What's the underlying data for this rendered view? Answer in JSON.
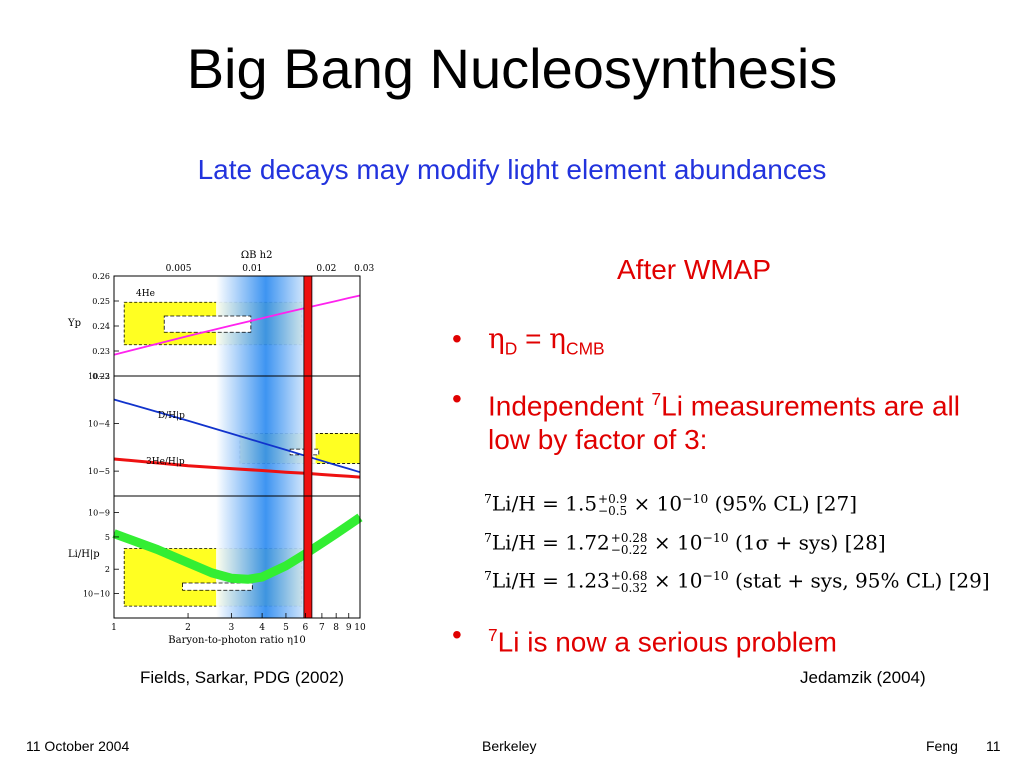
{
  "slide": {
    "title": "Big Bang Nucleosynthesis",
    "subtitle": "Late decays may modify light element abundances",
    "figure_caption": "Fields, Sarkar, PDG (2002)",
    "right_heading": "After WMAP",
    "bullets": {
      "b1_eta": "η",
      "b1_sub_d": "D",
      "b1_eq": " = ",
      "b1_sub_cmb": "CMB",
      "b2_pre": "Independent ",
      "b2_sup": "7",
      "b2_post": "Li measurements are all low by factor of 3:",
      "b3_sup": "7",
      "b3_post": "Li is now a serious problem"
    },
    "equations": [
      {
        "lhs_sup": "7",
        "lhs": "Li/H  =  ",
        "mant": "1.5",
        "up": "+0.9",
        "down": "−0.5",
        "rest": " × 10",
        "exp": "−10",
        "note": "   (95% CL) [27]"
      },
      {
        "lhs_sup": "7",
        "lhs": "Li/H  =  ",
        "mant": "1.72",
        "up": "+0.28",
        "down": "−0.22",
        "rest": " × 10",
        "exp": "−10",
        "note": "  (1σ + sys) [28]"
      },
      {
        "lhs_sup": "7",
        "lhs": "Li/H  =  ",
        "mant": "1.23",
        "up": "+0.68",
        "down": "−0.32",
        "rest": " × 10",
        "exp": "−10",
        "note": "  (stat + sys, 95% CL) [29]"
      }
    ],
    "equations_caption": "Jedamzik (2004)",
    "footer": {
      "date": "11 October 2004",
      "place": "Berkeley",
      "author": "Feng",
      "page": "11"
    }
  },
  "chart_data": {
    "type": "line",
    "xlabel": "Baryon-to-photon ratio η10",
    "x_scale": "log",
    "xlim": [
      1,
      10
    ],
    "x_ticks": [
      "1",
      "2",
      "3",
      "4",
      "5",
      "6",
      "7",
      "8",
      "9",
      "10"
    ],
    "top_axis_label": "ΩB h2",
    "top_ticks": [
      "0.005",
      "0.01",
      "0.02",
      "0.03"
    ],
    "top_tick_x": [
      1.83,
      3.65,
      7.3,
      10.95
    ],
    "wmap_band_x": [
      2.6,
      6.6
    ],
    "wmap_line_x": 6.14,
    "panels": [
      {
        "id": "helium",
        "ylabel": "Yp",
        "yscale": "linear",
        "ylim": [
          0.22,
          0.26
        ],
        "y_ticks": [
          "0.22",
          "0.23",
          "0.24",
          "0.25",
          "0.26"
        ],
        "series": [
          {
            "name": "4He",
            "color": "#ff22ee",
            "x": [
              1,
              2,
              3,
              4,
              5,
              6,
              7,
              8,
              9,
              10
            ],
            "y": [
              0.2285,
              0.236,
              0.2402,
              0.2431,
              0.2454,
              0.2472,
              0.2487,
              0.25,
              0.2512,
              0.2522
            ]
          }
        ],
        "obs_box": [
          1.1,
          5.8,
          0.2325,
          0.2495
        ],
        "inner_box": [
          1.6,
          3.6,
          0.2375,
          0.244
        ]
      },
      {
        "id": "deuterium",
        "ylabel": "",
        "yscale": "log",
        "ylim": [
          3e-06,
          0.001
        ],
        "y_ticks": [
          "10−3",
          "10−4",
          "10−5"
        ],
        "series": [
          {
            "name": "D/H|p",
            "color": "#1133cc",
            "x": [
              1,
              2,
              3,
              4,
              5,
              6,
              7,
              8,
              9,
              10
            ],
            "y": [
              0.00032,
              0.000115,
              6.15e-05,
              3.95e-05,
              2.8e-05,
              2.1e-05,
              1.65e-05,
              1.34e-05,
              1.12e-05,
              9.5e-06
            ]
          },
          {
            "name": "3He/H|p",
            "color": "#ee1111",
            "x": [
              1,
              2,
              3,
              4,
              5,
              6,
              7,
              8,
              9,
              10
            ],
            "y": [
              1.8e-05,
              1.3e-05,
              1.13e-05,
              1.03e-05,
              9.5e-06,
              9e-06,
              8.5e-06,
              8.1e-06,
              7.8e-06,
              7.5e-06
            ]
          }
        ],
        "obs_box": [
          3.25,
          10,
          1.45e-05,
          6.2e-05
        ],
        "inner_box": [
          5.2,
          6.8,
          2.2e-05,
          2.9e-05
        ]
      },
      {
        "id": "lithium",
        "ylabel": "Li/H|p",
        "yscale": "log",
        "ylim": [
          5e-11,
          1.6e-09
        ],
        "y_ticks": [
          "10−9",
          "5",
          "2",
          "10−10"
        ],
        "series": [
          {
            "name": "7Li/H",
            "color": "#33ee33",
            "x": [
              1,
              1.5,
              2,
              2.5,
              3,
              3.5,
              4,
              5,
              6,
              7,
              8,
              9,
              10
            ],
            "y": [
              5.5e-10,
              3.5e-10,
              2.4e-10,
              1.8e-10,
              1.55e-10,
              1.5e-10,
              1.6e-10,
              2.2e-10,
              3.1e-10,
              4.2e-10,
              5.5e-10,
              7e-10,
              8.7e-10
            ]
          }
        ],
        "obs_box": [
          1.1,
          5.8,
          7e-11,
          3.6e-10
        ],
        "inner_box": [
          1.9,
          3.65,
          1.1e-10,
          1.35e-10
        ]
      }
    ]
  }
}
